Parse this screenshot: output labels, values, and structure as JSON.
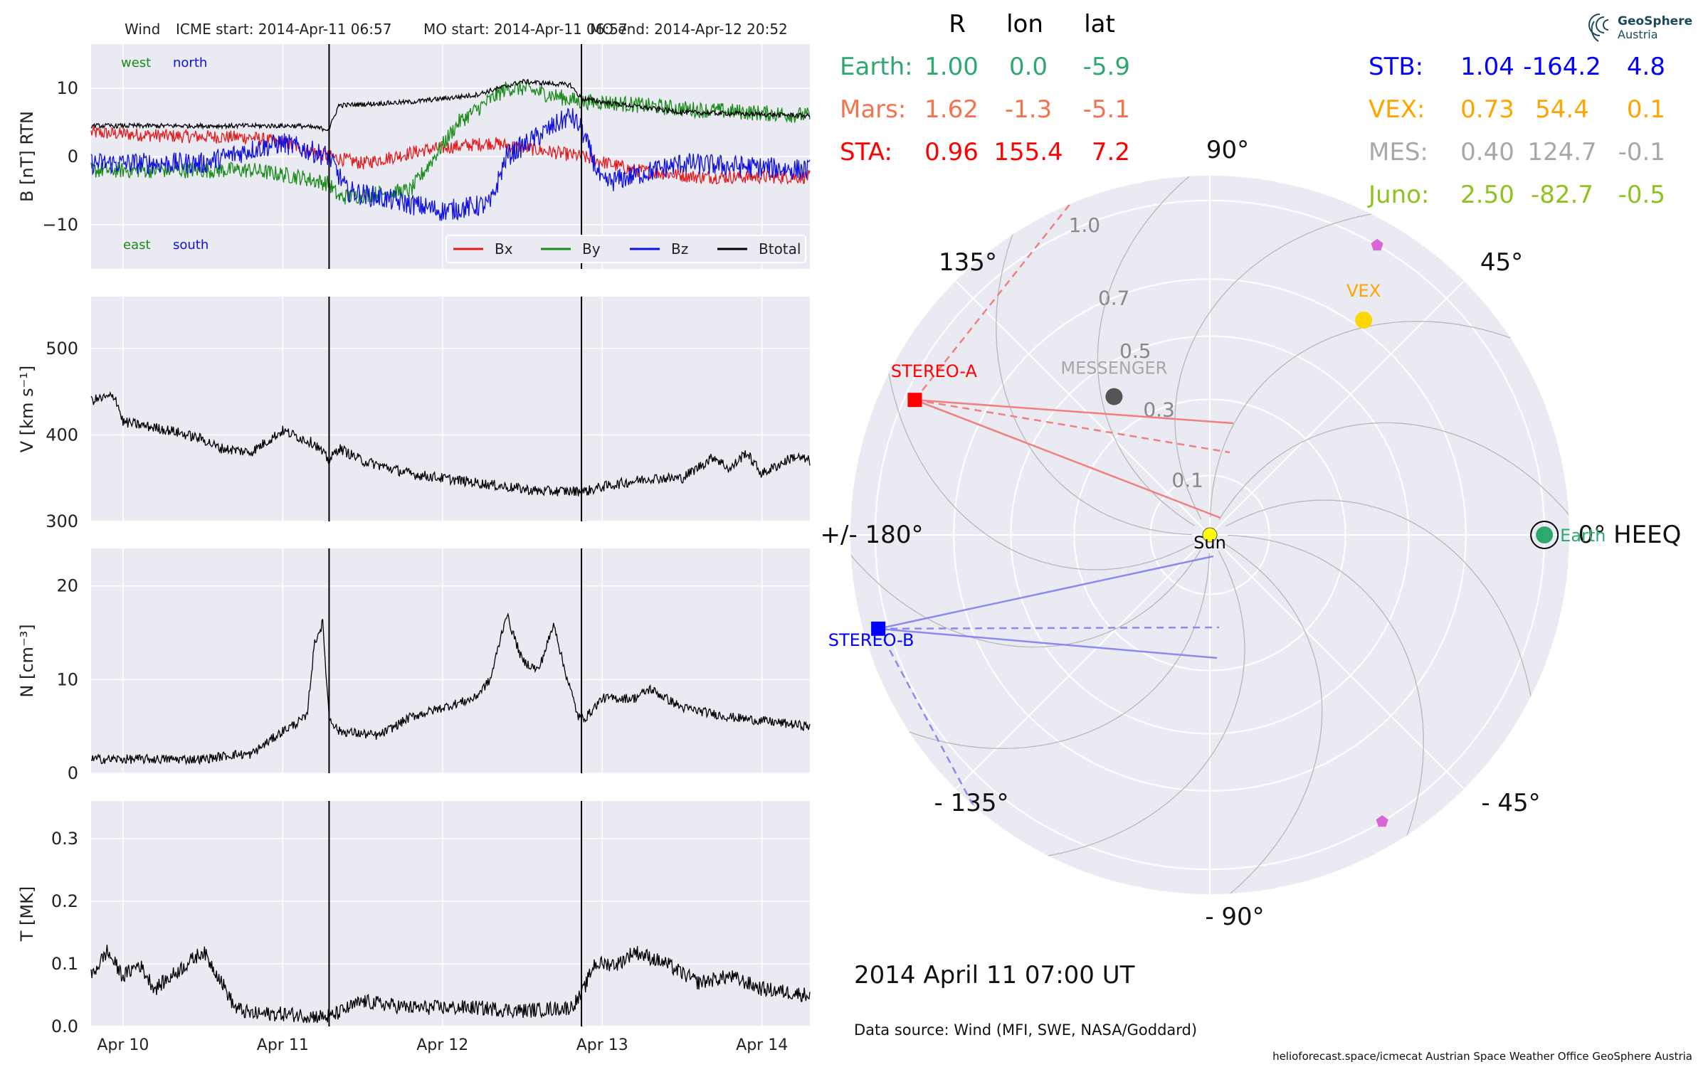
{
  "header": {
    "spacecraft": "Wind",
    "icme_start": "ICME start: 2014-Apr-11 06:57",
    "mo_start": "MO start: 2014-Apr-11 06:57",
    "mo_end": "MO end: 2014-Apr-12 20:52"
  },
  "colors": {
    "panel_bg": "#eaeaf2",
    "grid": "#ffffff",
    "bx": "#e41a1c",
    "by": "#1a8a1a",
    "bz": "#1010e0",
    "btotal": "#000000",
    "earth": "#2ea870",
    "mars": "#f4734f",
    "sta": "#ff0000",
    "stb": "#0000ff",
    "vex": "#ffa500",
    "mes": "#a8a8a8",
    "juno": "#8ec31f",
    "sun": "#ffff00",
    "vex_marker": "#ffd700",
    "mes_marker": "#555555",
    "pentagon": "#d966d6"
  },
  "chart_data": [
    {
      "type": "line",
      "id": "b_panel",
      "ylabel": "B [nT] RTN",
      "ylim": [
        -16.5,
        16.5
      ],
      "yticks": [
        -10,
        0,
        10
      ],
      "ytick_labels": [
        "−10",
        "0",
        "10"
      ],
      "xlim": [
        -0.2,
        4.3
      ],
      "xtick_labels": [
        "Apr 10",
        "Apr 11",
        "Apr 12",
        "Apr 13",
        "Apr 14"
      ],
      "xticks": [
        0,
        1,
        2,
        3,
        4
      ],
      "vlines": [
        1.29,
        2.87
      ],
      "grid": true,
      "legend": {
        "placement": "bottom-right",
        "entries": [
          "Bx",
          "By",
          "Bz",
          "Btotal"
        ]
      },
      "annotations": [
        "west",
        "north",
        "east",
        "south"
      ],
      "series": [
        {
          "name": "Bx",
          "color": "#e41a1c",
          "noise": 1.0,
          "x": [
            -0.2,
            0.3,
            0.8,
            1.0,
            1.29,
            1.5,
            1.9,
            2.3,
            2.87,
            3.2,
            3.6,
            4.0,
            4.3
          ],
          "y": [
            3.5,
            3,
            2.8,
            2,
            0,
            -1,
            1,
            2,
            0,
            -2,
            -3,
            -3,
            -3
          ]
        },
        {
          "name": "By",
          "color": "#1a8a1a",
          "noise": 1.2,
          "x": [
            -0.2,
            0.5,
            0.8,
            1.1,
            1.29,
            1.35,
            1.8,
            2.1,
            2.4,
            2.5,
            2.87,
            3.0,
            3.5,
            4.3
          ],
          "y": [
            -2,
            -2,
            -2,
            -3,
            -4,
            -6,
            -5,
            5,
            10,
            10,
            8,
            8,
            7,
            6
          ]
        },
        {
          "name": "Bz",
          "color": "#1010e0",
          "noise": 1.6,
          "x": [
            -0.2,
            0.5,
            0.8,
            1.0,
            1.29,
            1.4,
            1.8,
            2.0,
            2.3,
            2.4,
            2.6,
            2.8,
            2.87,
            3.0,
            3.5,
            4.3
          ],
          "y": [
            -1,
            -1,
            1,
            2,
            0,
            -5,
            -7,
            -8,
            -7,
            0,
            3,
            6,
            4,
            -4,
            -1,
            -2
          ]
        },
        {
          "name": "Btotal",
          "color": "#000000",
          "noise": 0.35,
          "x": [
            -0.2,
            0.8,
            1.1,
            1.29,
            1.35,
            1.8,
            2.2,
            2.5,
            2.8,
            2.87,
            3.0,
            3.5,
            4.3
          ],
          "y": [
            4.5,
            4.5,
            4.5,
            4,
            7.5,
            8,
            9,
            11,
            10.5,
            8.5,
            8,
            6.5,
            6
          ]
        }
      ]
    },
    {
      "type": "line",
      "id": "v_panel",
      "ylabel": "V [km s⁻¹]",
      "ylim": [
        300,
        560
      ],
      "yticks": [
        300,
        400,
        500
      ],
      "ytick_labels": [
        "300",
        "400",
        "500"
      ],
      "xlim": [
        -0.2,
        4.3
      ],
      "xticks": [
        0,
        1,
        2,
        3,
        4
      ],
      "vlines": [
        1.29,
        2.87
      ],
      "grid": true,
      "series": [
        {
          "name": "V",
          "color": "#000000",
          "noise": 6,
          "x": [
            -0.2,
            -0.05,
            0.0,
            0.3,
            0.5,
            0.6,
            0.8,
            1.0,
            1.2,
            1.29,
            1.35,
            1.5,
            1.8,
            2.2,
            2.6,
            2.9,
            3.0,
            3.3,
            3.5,
            3.7,
            3.8,
            3.9,
            4.0,
            4.2,
            4.3
          ],
          "y": [
            440,
            445,
            415,
            405,
            395,
            385,
            380,
            405,
            390,
            370,
            385,
            370,
            355,
            345,
            335,
            335,
            340,
            350,
            350,
            375,
            360,
            380,
            355,
            375,
            370
          ]
        }
      ]
    },
    {
      "type": "line",
      "id": "n_panel",
      "ylabel": "N [cm⁻³]",
      "ylim": [
        0,
        24
      ],
      "yticks": [
        0,
        10,
        20
      ],
      "ytick_labels": [
        "0",
        "10",
        "20"
      ],
      "xlim": [
        -0.2,
        4.3
      ],
      "xticks": [
        0,
        1,
        2,
        3,
        4
      ],
      "vlines": [
        1.29,
        2.87
      ],
      "grid": true,
      "series": [
        {
          "name": "N",
          "color": "#000000",
          "noise": 0.5,
          "x": [
            -0.2,
            0.5,
            0.7,
            0.8,
            1.0,
            1.15,
            1.2,
            1.25,
            1.29,
            1.35,
            1.6,
            1.8,
            2.0,
            2.2,
            2.3,
            2.4,
            2.5,
            2.6,
            2.7,
            2.75,
            2.85,
            2.9,
            3.0,
            3.2,
            3.3,
            3.5,
            3.8,
            4.3
          ],
          "y": [
            1.5,
            1.5,
            2,
            2,
            4.5,
            6,
            14,
            16,
            6,
            4.5,
            4,
            6,
            7,
            8,
            10,
            17,
            12,
            11,
            16,
            12,
            6,
            6,
            8,
            8,
            9,
            7,
            6,
            5
          ]
        }
      ]
    },
    {
      "type": "line",
      "id": "t_panel",
      "ylabel": "T [MK]",
      "ylim": [
        0,
        0.36
      ],
      "yticks": [
        0.0,
        0.1,
        0.2,
        0.3
      ],
      "ytick_labels": [
        "0.0",
        "0.1",
        "0.2",
        "0.3"
      ],
      "xlim": [
        -0.2,
        4.3
      ],
      "xticks": [
        0,
        1,
        2,
        3,
        4
      ],
      "xtick_labels": [
        "Apr 10",
        "Apr 11",
        "Apr 12",
        "Apr 13",
        "Apr 14"
      ],
      "vlines": [
        1.29,
        2.87
      ],
      "grid": true,
      "series": [
        {
          "name": "T",
          "color": "#000000",
          "noise": 0.012,
          "x": [
            -0.2,
            -0.1,
            0.0,
            0.1,
            0.2,
            0.3,
            0.5,
            0.6,
            0.7,
            0.8,
            1.0,
            1.29,
            1.5,
            1.8,
            2.2,
            2.5,
            2.8,
            2.87,
            2.95,
            3.1,
            3.2,
            3.4,
            3.6,
            3.8,
            4.0,
            4.3
          ],
          "y": [
            0.08,
            0.12,
            0.08,
            0.1,
            0.06,
            0.08,
            0.12,
            0.08,
            0.03,
            0.02,
            0.02,
            0.015,
            0.04,
            0.03,
            0.03,
            0.025,
            0.03,
            0.05,
            0.1,
            0.1,
            0.12,
            0.1,
            0.07,
            0.08,
            0.06,
            0.05
          ]
        }
      ]
    },
    {
      "type": "scatter",
      "id": "position_plot",
      "projection": "polar",
      "radial_ticks": [
        0.1,
        0.3,
        0.5,
        0.7,
        1.0
      ],
      "radial_tick_labels": [
        "0.1",
        "0.3",
        "0.5",
        "0.7",
        "1.0"
      ],
      "angle_labels": [
        {
          "angle": 0,
          "label": "0° HEEQ"
        },
        {
          "angle": 45,
          "label": "45°"
        },
        {
          "angle": 90,
          "label": "90°"
        },
        {
          "angle": 135,
          "label": "135°"
        },
        {
          "angle": 180,
          "label": "+/- 180°"
        },
        {
          "angle": -135,
          "label": "- 135°"
        },
        {
          "angle": -90,
          "label": "- 90°"
        },
        {
          "angle": -45,
          "label": "- 45°"
        }
      ],
      "bodies": [
        {
          "name": "Sun",
          "r": 0.0,
          "lon": 0,
          "marker": "circle",
          "color": "#ffff00"
        },
        {
          "name": "Earth",
          "r": 1.0,
          "lon": 0.0,
          "marker": "circle-ring",
          "color": "#2ea870"
        },
        {
          "name": "STEREO-A",
          "r": 0.96,
          "lon": 155.4,
          "marker": "square",
          "color": "#ff0000"
        },
        {
          "name": "STEREO-B",
          "r": 1.04,
          "lon": -164.2,
          "marker": "square",
          "color": "#0000ff"
        },
        {
          "name": "VEX",
          "r": 0.73,
          "lon": 54.4,
          "marker": "circle",
          "color": "#ffd700",
          "label_color": "#ffa500"
        },
        {
          "name": "MESSENGER",
          "r": 0.4,
          "lon": 124.7,
          "marker": "circle",
          "color": "#555555",
          "label_color": "#a8a8a8"
        },
        {
          "name": "",
          "r": 1.0,
          "lon": 60,
          "marker": "pentagon",
          "color": "#d966d6"
        },
        {
          "name": "",
          "r": 1.0,
          "lon": -59,
          "marker": "pentagon",
          "color": "#d966d6"
        }
      ]
    }
  ],
  "table": {
    "headers": [
      "R",
      "lon",
      "lat"
    ],
    "left_rows": [
      {
        "label": "Earth:",
        "r": "1.00",
        "lon": "0.0",
        "lat": "-5.9",
        "color": "#2ea870"
      },
      {
        "label": "Mars:",
        "r": "1.62",
        "lon": "-1.3",
        "lat": "-5.1",
        "color": "#f4734f"
      },
      {
        "label": "STA:",
        "r": "0.96",
        "lon": "155.4",
        "lat": "7.2",
        "color": "#ff0000"
      }
    ],
    "right_rows": [
      {
        "label": "STB:",
        "r": "1.04",
        "lon": "-164.2",
        "lat": "4.8",
        "color": "#0000ff"
      },
      {
        "label": "VEX:",
        "r": "0.73",
        "lon": "54.4",
        "lat": "0.1",
        "color": "#ffa500"
      },
      {
        "label": "MES:",
        "r": "0.40",
        "lon": "124.7",
        "lat": "-0.1",
        "color": "#a8a8a8"
      },
      {
        "label": "Juno:",
        "r": "2.50",
        "lon": "-82.7",
        "lat": "-0.5",
        "color": "#8ec31f"
      }
    ]
  },
  "timestamp": "2014 April 11  07:00 UT",
  "data_source": "Data source: Wind (MFI, SWE, NASA/Goddard)",
  "footer": "helioforecast.space/icmecat   Austrian Space Weather Office   GeoSphere Austria",
  "logo": {
    "line1": "GeoSphere",
    "line2": "Austria"
  }
}
